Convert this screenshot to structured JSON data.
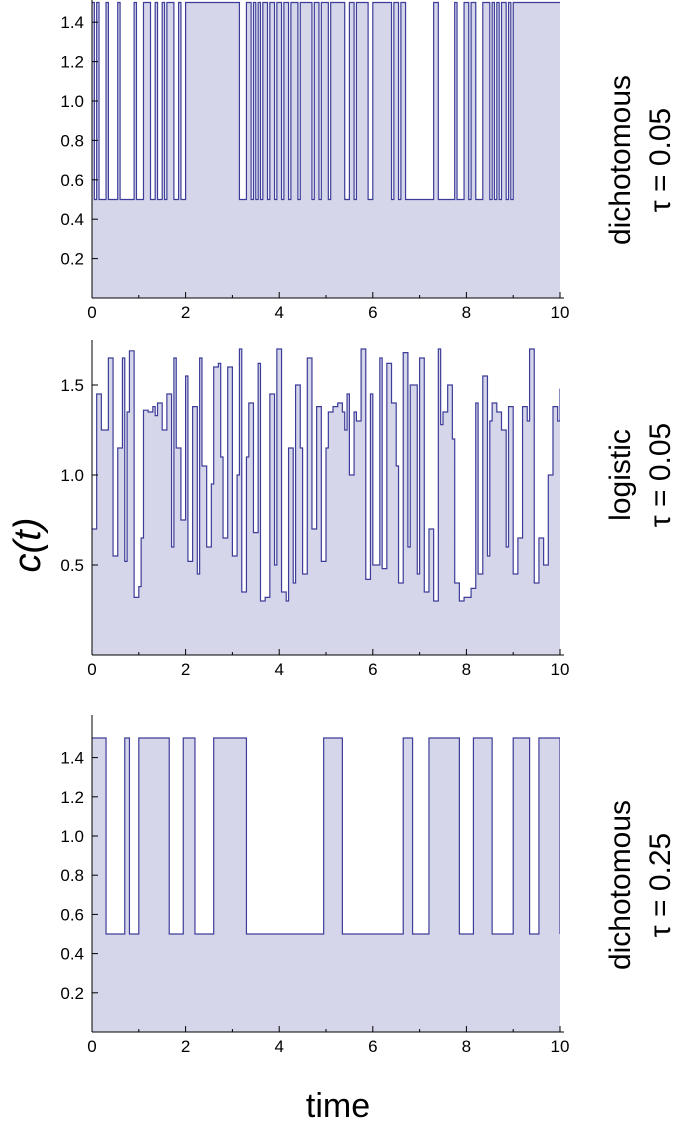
{
  "figure": {
    "ylabel": "c(t)",
    "xlabel": "time"
  },
  "colors": {
    "line": "#3d3d99",
    "fill": "#d6d6eb",
    "axis": "#000000"
  },
  "chart_data": [
    {
      "type": "area",
      "label_line1": "dichotomous",
      "label_line2": "τ = 0.05",
      "xlim": [
        0,
        10
      ],
      "ylim": [
        0,
        1.5
      ],
      "xticks": [
        "0",
        "2",
        "4",
        "6",
        "8",
        "10"
      ],
      "yticks": [
        "0.2",
        "0.4",
        "0.6",
        "0.8",
        "1.0",
        "1.2",
        "1.4"
      ],
      "low": 0.5,
      "high": 1.5,
      "x": [
        0,
        0.05,
        0.1,
        0.15,
        0.3,
        0.35,
        0.55,
        0.6,
        0.9,
        0.95,
        1.1,
        1.25,
        1.35,
        1.4,
        1.5,
        1.55,
        1.6,
        1.75,
        1.85,
        1.9,
        2.0,
        2.05,
        3.15,
        3.3,
        3.4,
        3.45,
        3.5,
        3.55,
        3.6,
        3.65,
        3.75,
        3.8,
        3.9,
        3.95,
        4.05,
        4.1,
        4.2,
        4.25,
        4.4,
        4.45,
        4.7,
        4.75,
        4.85,
        4.9,
        5.05,
        5.1,
        5.4,
        5.5,
        5.6,
        5.65,
        5.9,
        6.0,
        6.4,
        6.45,
        6.55,
        6.6,
        6.7,
        7.3,
        7.4,
        7.75,
        7.8,
        7.95,
        8.05,
        8.1,
        8.2,
        8.35,
        8.5,
        8.55,
        8.6,
        8.65,
        8.7,
        8.75,
        8.85,
        8.9,
        8.95,
        9.0,
        10.0
      ],
      "y": [
        1.5,
        0.5,
        1.5,
        0.5,
        1.5,
        0.5,
        1.5,
        0.5,
        1.5,
        0.5,
        1.5,
        0.5,
        1.5,
        0.5,
        1.5,
        0.5,
        1.5,
        0.5,
        1.5,
        0.5,
        1.5,
        1.5,
        0.5,
        1.5,
        0.5,
        1.5,
        0.5,
        1.5,
        0.5,
        1.5,
        0.5,
        1.5,
        0.5,
        1.5,
        0.5,
        1.5,
        0.5,
        1.5,
        0.5,
        1.5,
        0.5,
        1.5,
        0.5,
        1.5,
        0.5,
        1.5,
        0.5,
        1.5,
        0.5,
        1.5,
        0.5,
        1.5,
        0.5,
        1.5,
        0.5,
        1.5,
        0.5,
        1.5,
        0.5,
        1.5,
        0.5,
        1.5,
        0.5,
        1.5,
        0.5,
        1.5,
        0.5,
        1.5,
        0.5,
        1.5,
        0.5,
        1.5,
        0.5,
        1.5,
        0.5,
        1.5,
        1.5
      ]
    },
    {
      "type": "area",
      "label_line1": "logistic",
      "label_line2": "τ = 0.05",
      "xlim": [
        0,
        10
      ],
      "ylim": [
        0,
        1.75
      ],
      "xticks": [
        "0",
        "2",
        "4",
        "6",
        "8",
        "10"
      ],
      "yticks": [
        "0.5",
        "1.0",
        "1.5"
      ],
      "y_tick_values": [
        0.5,
        1.0,
        1.5
      ],
      "x": [
        0,
        0.1,
        0.2,
        0.35,
        0.45,
        0.55,
        0.65,
        0.7,
        0.75,
        0.8,
        0.9,
        1.0,
        1.05,
        1.1,
        1.2,
        1.3,
        1.35,
        1.4,
        1.5,
        1.6,
        1.7,
        1.75,
        1.8,
        1.9,
        2.0,
        2.05,
        2.15,
        2.25,
        2.3,
        2.35,
        2.45,
        2.55,
        2.6,
        2.7,
        2.75,
        2.8,
        2.9,
        3.0,
        3.1,
        3.15,
        3.2,
        3.3,
        3.35,
        3.45,
        3.55,
        3.6,
        3.7,
        3.8,
        3.9,
        3.95,
        4.05,
        4.15,
        4.2,
        4.3,
        4.35,
        4.45,
        4.5,
        4.6,
        4.7,
        4.8,
        4.9,
        5.0,
        5.05,
        5.15,
        5.25,
        5.35,
        5.4,
        5.45,
        5.5,
        5.6,
        5.65,
        5.75,
        5.85,
        5.95,
        6.0,
        6.15,
        6.2,
        6.3,
        6.4,
        6.5,
        6.55,
        6.65,
        6.75,
        6.8,
        6.95,
        7.0,
        7.1,
        7.2,
        7.3,
        7.4,
        7.45,
        7.5,
        7.6,
        7.7,
        7.75,
        7.85,
        7.95,
        8.1,
        8.2,
        8.25,
        8.35,
        8.45,
        8.5,
        8.55,
        8.65,
        8.75,
        8.85,
        8.9,
        9.0,
        9.1,
        9.2,
        9.3,
        9.35,
        9.45,
        9.55,
        9.65,
        9.75,
        9.85,
        9.95,
        10.0
      ],
      "y": [
        0.7,
        1.45,
        1.25,
        1.65,
        0.55,
        1.15,
        1.65,
        0.52,
        1.35,
        1.69,
        0.32,
        0.38,
        0.65,
        1.36,
        1.35,
        1.38,
        1.33,
        1.4,
        1.25,
        1.45,
        0.6,
        1.65,
        1.15,
        0.75,
        1.55,
        0.52,
        1.38,
        0.45,
        1.65,
        1.05,
        0.6,
        0.95,
        1.6,
        1.62,
        1.1,
        0.65,
        1.6,
        0.55,
        1.0,
        1.7,
        0.35,
        1.1,
        1.4,
        0.68,
        1.62,
        0.3,
        0.32,
        1.45,
        0.5,
        1.7,
        0.35,
        0.3,
        1.15,
        0.4,
        1.5,
        1.15,
        0.45,
        1.65,
        0.7,
        1.38,
        0.52,
        1.15,
        1.35,
        1.38,
        1.4,
        1.35,
        1.25,
        1.45,
        1.0,
        1.35,
        1.3,
        1.7,
        0.42,
        1.45,
        0.5,
        1.65,
        0.48,
        1.62,
        1.4,
        1.05,
        0.4,
        1.68,
        0.6,
        1.5,
        0.45,
        1.65,
        0.35,
        0.7,
        0.3,
        1.7,
        1.28,
        1.35,
        1.5,
        1.2,
        0.4,
        0.3,
        0.32,
        0.37,
        1.4,
        0.45,
        1.55,
        0.55,
        1.3,
        1.4,
        1.35,
        1.25,
        0.6,
        1.38,
        0.45,
        0.65,
        1.38,
        1.3,
        1.7,
        0.4,
        0.65,
        0.5,
        1.0,
        1.38,
        1.3,
        1.48
      ]
    },
    {
      "type": "area",
      "label_line1": "dichotomous",
      "label_line2": "τ = 0.25",
      "xlim": [
        0,
        10
      ],
      "ylim": [
        0,
        1.5
      ],
      "xticks": [
        "0",
        "2",
        "4",
        "6",
        "8",
        "10"
      ],
      "yticks": [
        "0.2",
        "0.4",
        "0.6",
        "0.8",
        "1.0",
        "1.2",
        "1.4"
      ],
      "x": [
        0,
        0.3,
        0.7,
        0.8,
        1.0,
        1.65,
        1.95,
        2.2,
        2.6,
        3.3,
        4.95,
        5.35,
        6.65,
        6.85,
        7.2,
        7.85,
        8.15,
        8.55,
        9.0,
        9.35,
        9.55,
        10.0
      ],
      "y": [
        1.5,
        0.5,
        1.5,
        0.5,
        1.5,
        0.5,
        1.5,
        0.5,
        1.5,
        0.5,
        1.5,
        0.5,
        1.5,
        0.5,
        1.5,
        0.5,
        1.5,
        0.5,
        1.5,
        0.5,
        1.5,
        0.5
      ]
    }
  ]
}
